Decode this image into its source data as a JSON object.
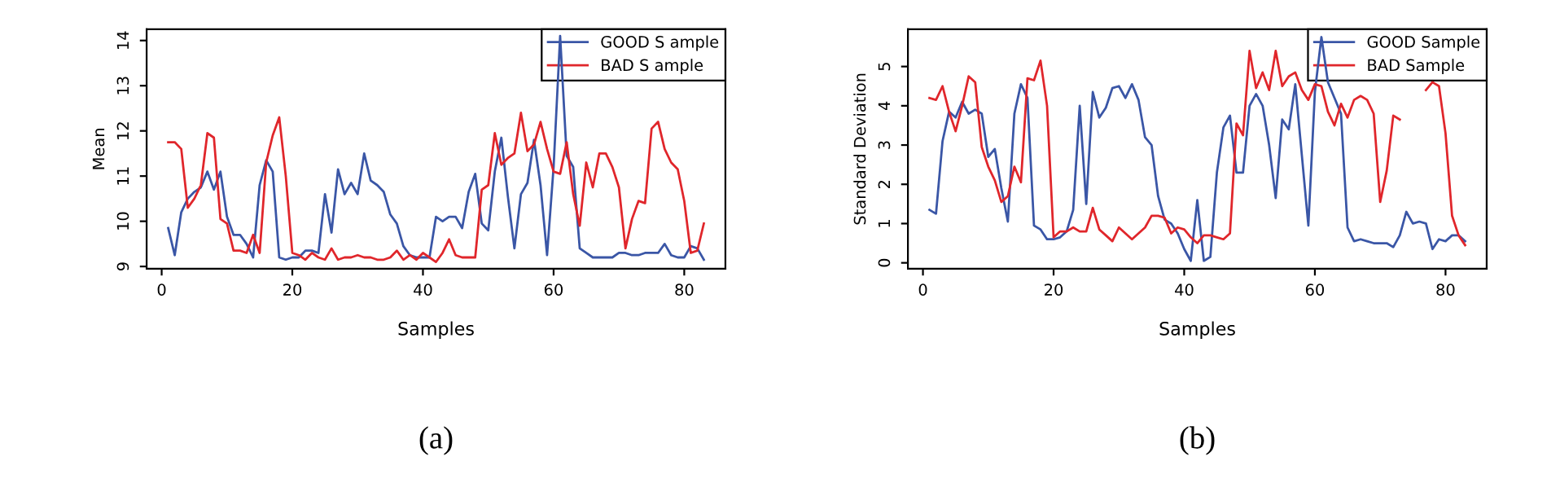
{
  "chart_data": [
    {
      "type": "line",
      "xlabel": "Samples",
      "ylabel": "Mean",
      "annotations": [
        "(a)"
      ],
      "legend": "top right",
      "grid": false,
      "x": [
        1,
        2,
        3,
        4,
        5,
        6,
        7,
        8,
        9,
        10,
        11,
        12,
        13,
        14,
        15,
        16,
        17,
        18,
        19,
        20,
        21,
        22,
        23,
        24,
        25,
        26,
        27,
        28,
        29,
        30,
        31,
        32,
        33,
        34,
        35,
        36,
        37,
        38,
        39,
        40,
        41,
        42,
        43,
        44,
        45,
        46,
        47,
        48,
        49,
        50,
        51,
        52,
        53,
        54,
        55,
        56,
        57,
        58,
        59,
        60,
        61,
        62,
        63,
        64,
        65,
        66,
        67,
        68,
        69,
        70,
        71,
        72,
        73,
        74,
        75,
        76,
        77,
        78,
        79,
        80,
        81,
        82,
        83
      ],
      "xlim": [
        -2.3,
        86.3
      ],
      "xticks": [
        0,
        20,
        40,
        60,
        80
      ],
      "ylim": [
        8.95,
        14.25
      ],
      "yticks": [
        9,
        10,
        11,
        12,
        13,
        14
      ],
      "series": [
        {
          "name": "GOOD S ample",
          "color": "#3a56a6",
          "values": [
            9.85,
            9.25,
            10.2,
            10.5,
            10.65,
            10.75,
            11.1,
            10.7,
            11.1,
            10.1,
            9.7,
            9.7,
            9.5,
            9.2,
            10.8,
            11.35,
            11.1,
            9.2,
            9.15,
            9.2,
            9.2,
            9.35,
            9.35,
            9.3,
            10.6,
            9.75,
            11.15,
            10.6,
            10.85,
            10.6,
            11.5,
            10.9,
            10.8,
            10.65,
            10.15,
            9.95,
            9.45,
            9.25,
            9.2,
            9.2,
            9.2,
            10.1,
            10.0,
            10.1,
            10.1,
            9.85,
            10.65,
            11.05,
            9.95,
            9.8,
            11.1,
            11.85,
            10.55,
            9.4,
            10.6,
            10.85,
            11.8,
            10.8,
            9.25,
            11.2,
            14.1,
            11.45,
            11.2,
            9.4,
            9.3,
            9.2,
            9.2,
            9.2,
            9.2,
            9.3,
            9.3,
            9.25,
            9.25,
            9.3,
            9.3,
            9.3,
            9.5,
            9.25,
            9.2,
            9.2,
            9.45,
            9.4,
            9.15
          ]
        },
        {
          "name": "BAD S ample",
          "color": "#e0262b",
          "values": [
            11.75,
            11.75,
            11.6,
            10.3,
            10.5,
            10.8,
            11.95,
            11.85,
            10.05,
            9.95,
            9.35,
            9.35,
            9.3,
            9.7,
            9.3,
            11.3,
            11.9,
            12.3,
            11.0,
            9.3,
            9.25,
            9.15,
            9.3,
            9.2,
            9.15,
            9.4,
            9.15,
            9.2,
            9.2,
            9.25,
            9.2,
            9.2,
            9.15,
            9.15,
            9.2,
            9.35,
            9.15,
            9.25,
            9.15,
            9.3,
            9.2,
            9.1,
            9.3,
            9.6,
            9.25,
            9.2,
            9.2,
            9.2,
            10.7,
            10.8,
            11.95,
            11.25,
            11.4,
            11.5,
            12.4,
            11.55,
            11.7,
            12.2,
            11.6,
            11.1,
            11.05,
            11.75,
            10.6,
            9.9,
            11.3,
            10.75,
            11.5,
            11.5,
            11.2,
            10.75,
            9.4,
            10.05,
            10.45,
            10.4,
            12.05,
            12.2,
            11.6,
            11.3,
            11.15,
            10.45,
            9.3,
            9.35,
            9.95
          ]
        }
      ]
    },
    {
      "type": "line",
      "xlabel": "Samples",
      "ylabel": "Standard Deviation",
      "annotations": [
        "(b)"
      ],
      "legend": "top right",
      "grid": false,
      "x": [
        1,
        2,
        3,
        4,
        5,
        6,
        7,
        8,
        9,
        10,
        11,
        12,
        13,
        14,
        15,
        16,
        17,
        18,
        19,
        20,
        21,
        22,
        23,
        24,
        25,
        26,
        27,
        28,
        29,
        30,
        31,
        32,
        33,
        34,
        35,
        36,
        37,
        38,
        39,
        40,
        41,
        42,
        43,
        44,
        45,
        46,
        47,
        48,
        49,
        50,
        51,
        52,
        53,
        54,
        55,
        56,
        57,
        58,
        59,
        60,
        61,
        62,
        63,
        64,
        65,
        66,
        67,
        68,
        69,
        70,
        71,
        72,
        73,
        74,
        75,
        76,
        77,
        78,
        79,
        80,
        81,
        82,
        83
      ],
      "xlim": [
        -2.3,
        86.3
      ],
      "xticks": [
        0,
        20,
        40,
        60,
        80
      ],
      "ylim": [
        -0.15,
        5.95
      ],
      "yticks": [
        0,
        1,
        2,
        3,
        4,
        5
      ],
      "series": [
        {
          "name": "GOOD Sample",
          "color": "#3a56a6",
          "values": [
            1.35,
            1.25,
            3.1,
            3.85,
            3.7,
            4.1,
            3.8,
            3.9,
            3.8,
            2.7,
            2.9,
            1.9,
            1.05,
            3.8,
            4.55,
            4.2,
            0.95,
            0.85,
            0.6,
            0.6,
            0.65,
            0.8,
            1.35,
            4.0,
            1.5,
            4.35,
            3.7,
            3.95,
            4.45,
            4.5,
            4.2,
            4.55,
            4.15,
            3.2,
            3.0,
            1.7,
            1.1,
            1.0,
            0.75,
            0.35,
            0.05,
            1.6,
            0.05,
            0.15,
            2.3,
            3.45,
            3.75,
            2.3,
            2.3,
            4.0,
            4.3,
            4.0,
            3.0,
            1.65,
            3.65,
            3.4,
            4.55,
            2.75,
            0.95,
            4.35,
            5.75,
            4.6,
            4.2,
            3.8,
            0.9,
            0.55,
            0.6,
            0.55,
            0.5,
            0.5,
            0.5,
            0.4,
            0.7,
            1.3,
            1.0,
            1.05,
            1.0,
            0.35,
            0.6,
            0.55,
            0.7,
            0.7,
            0.55
          ]
        },
        {
          "name": "BAD Sample",
          "color": "#e0262b",
          "values": [
            4.2,
            4.15,
            4.5,
            3.85,
            3.35,
            4.0,
            4.75,
            4.6,
            2.95,
            2.45,
            2.1,
            1.55,
            1.7,
            2.45,
            2.05,
            4.7,
            4.65,
            5.15,
            4.0,
            0.65,
            0.8,
            0.8,
            0.9,
            0.8,
            0.8,
            1.4,
            0.85,
            0.7,
            0.55,
            0.9,
            0.75,
            0.6,
            0.75,
            0.9,
            1.2,
            1.2,
            1.15,
            0.75,
            0.9,
            0.85,
            0.65,
            0.5,
            0.7,
            0.7,
            0.65,
            0.6,
            0.75,
            3.55,
            3.25,
            5.4,
            4.45,
            4.85,
            4.4,
            5.4,
            4.5,
            4.75,
            4.85,
            4.4,
            4.15,
            4.55,
            4.5,
            3.85,
            3.5,
            4.05,
            3.7,
            4.15,
            4.25,
            4.15,
            3.8,
            1.55,
            2.35,
            3.75,
            3.65,
            null,
            null,
            null,
            4.4,
            4.6,
            4.5,
            3.3,
            1.2,
            0.7,
            0.45
          ]
        }
      ]
    }
  ]
}
